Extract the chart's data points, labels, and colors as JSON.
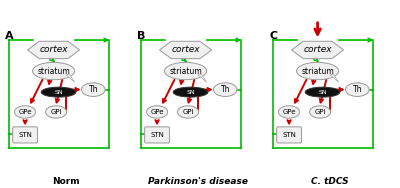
{
  "panels": [
    "A",
    "B",
    "C"
  ],
  "titles": [
    "Norm",
    "Parkinson's disease",
    "C. tDCS"
  ],
  "bg_color": "#ffffff",
  "green": "#00bb00",
  "red": "#cc0000",
  "node_fill": "#f0f0f0",
  "node_ec": "#999999",
  "sn_fill": "#111111",
  "sn_text": "#ffffff"
}
